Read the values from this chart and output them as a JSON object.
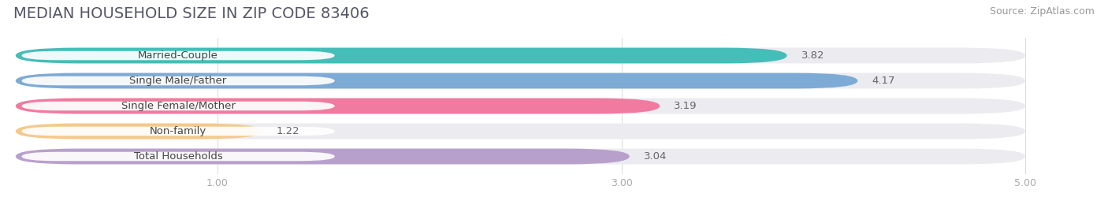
{
  "title": "MEDIAN HOUSEHOLD SIZE IN ZIP CODE 83406",
  "source": "Source: ZipAtlas.com",
  "categories": [
    "Married-Couple",
    "Single Male/Father",
    "Single Female/Mother",
    "Non-family",
    "Total Households"
  ],
  "values": [
    3.82,
    4.17,
    3.19,
    1.22,
    3.04
  ],
  "bar_colors": [
    "#45bdb8",
    "#7eaad6",
    "#f07aa0",
    "#f5c98a",
    "#b8a0cc"
  ],
  "background_color": "#ffffff",
  "bar_bg_color": "#ebebf0",
  "xlim": [
    0,
    5.0
  ],
  "xmin": 0,
  "xmax": 5.0,
  "xticks": [
    1.0,
    3.0,
    5.0
  ],
  "title_fontsize": 14,
  "source_fontsize": 9,
  "label_fontsize": 9.5,
  "value_fontsize": 9.5
}
